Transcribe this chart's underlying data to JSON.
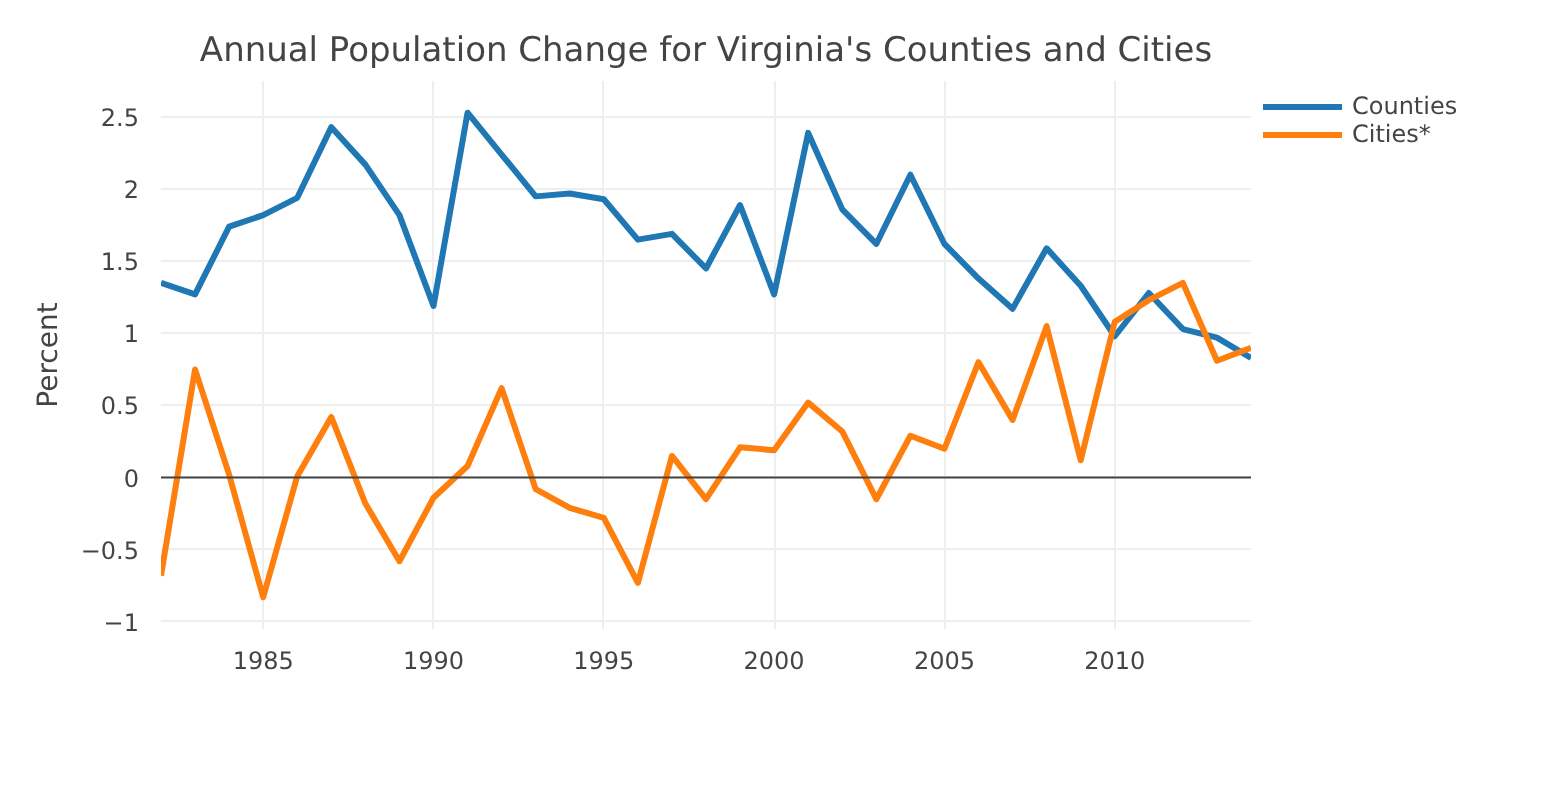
{
  "chart_data": {
    "type": "line",
    "title": "Annual Population Change for Virginia's Counties and Cities",
    "ylabel": "Percent",
    "x": [
      1982,
      1983,
      1984,
      1985,
      1986,
      1987,
      1988,
      1989,
      1990,
      1991,
      1992,
      1993,
      1994,
      1995,
      1996,
      1997,
      1998,
      1999,
      2000,
      2001,
      2002,
      2003,
      2004,
      2005,
      2006,
      2007,
      2008,
      2009,
      2010,
      2011,
      2012,
      2013,
      2014
    ],
    "series": [
      {
        "name": "Counties",
        "color": "#1f77b4",
        "values": [
          1.35,
          1.27,
          1.74,
          1.82,
          1.94,
          2.43,
          2.17,
          1.82,
          1.19,
          2.53,
          2.24,
          1.95,
          1.97,
          1.93,
          1.65,
          1.69,
          1.45,
          1.89,
          1.27,
          2.39,
          1.86,
          1.62,
          2.1,
          1.62,
          1.38,
          1.17,
          1.59,
          1.33,
          0.98,
          1.28,
          1.03,
          0.97,
          0.83
        ]
      },
      {
        "name": "Cities*",
        "color": "#ff7f0e",
        "values": [
          -0.68,
          0.75,
          0.02,
          -0.83,
          0.01,
          0.42,
          -0.18,
          -0.58,
          -0.14,
          0.08,
          0.62,
          -0.08,
          -0.21,
          -0.28,
          -0.73,
          0.15,
          -0.15,
          0.21,
          0.19,
          0.52,
          0.32,
          -0.15,
          0.29,
          0.2,
          0.8,
          0.4,
          1.05,
          0.12,
          1.08,
          1.23,
          1.35,
          0.81,
          0.9
        ]
      }
    ],
    "xlim": [
      1982,
      2014
    ],
    "xticks": [
      1985,
      1990,
      1995,
      2000,
      2005,
      2010
    ],
    "ylim": [
      -1.05,
      2.75
    ],
    "yticks": [
      -1,
      -0.5,
      0,
      0.5,
      1,
      1.5,
      2,
      2.5
    ],
    "ref_lines": [
      {
        "axis": "y",
        "value": 0,
        "color": "#444444"
      }
    ],
    "grid": true,
    "legend": "top right",
    "marker": "none",
    "line_style": "solid"
  }
}
